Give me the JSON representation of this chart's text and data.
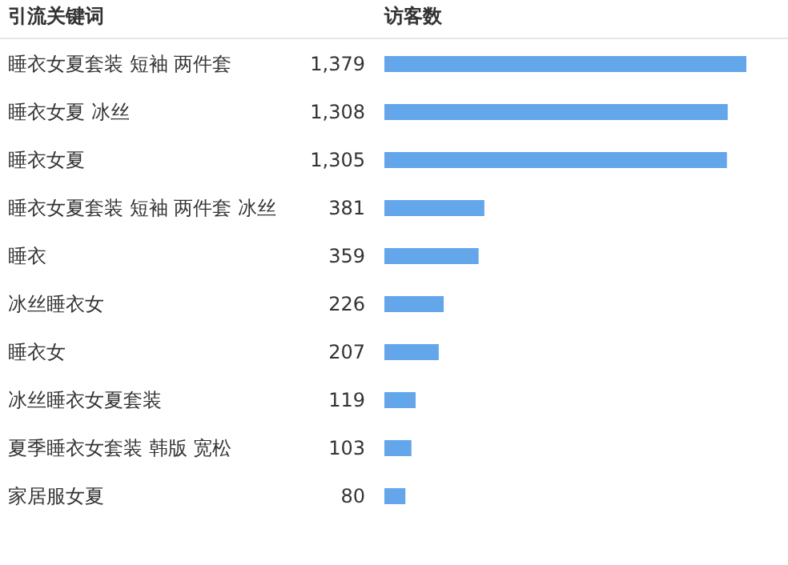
{
  "chart_data": {
    "type": "bar",
    "orientation": "horizontal",
    "ylabel": "引流关键词",
    "xlabel": "访客数",
    "categories": [
      "睡衣女夏套装 短袖 两件套",
      "睡衣女夏 冰丝",
      "睡衣女夏",
      "睡衣女夏套装 短袖 两件套 冰丝",
      "睡衣",
      "冰丝睡衣女",
      "睡衣女",
      "冰丝睡衣女夏套装",
      "夏季睡衣女套装 韩版 宽松",
      "家居服女夏"
    ],
    "values": [
      1379,
      1308,
      1305,
      381,
      359,
      226,
      207,
      119,
      103,
      80
    ],
    "value_labels": [
      "1,379",
      "1,308",
      "1,305",
      "381",
      "359",
      "226",
      "207",
      "119",
      "103",
      "80"
    ],
    "color": "#64a6ea"
  }
}
